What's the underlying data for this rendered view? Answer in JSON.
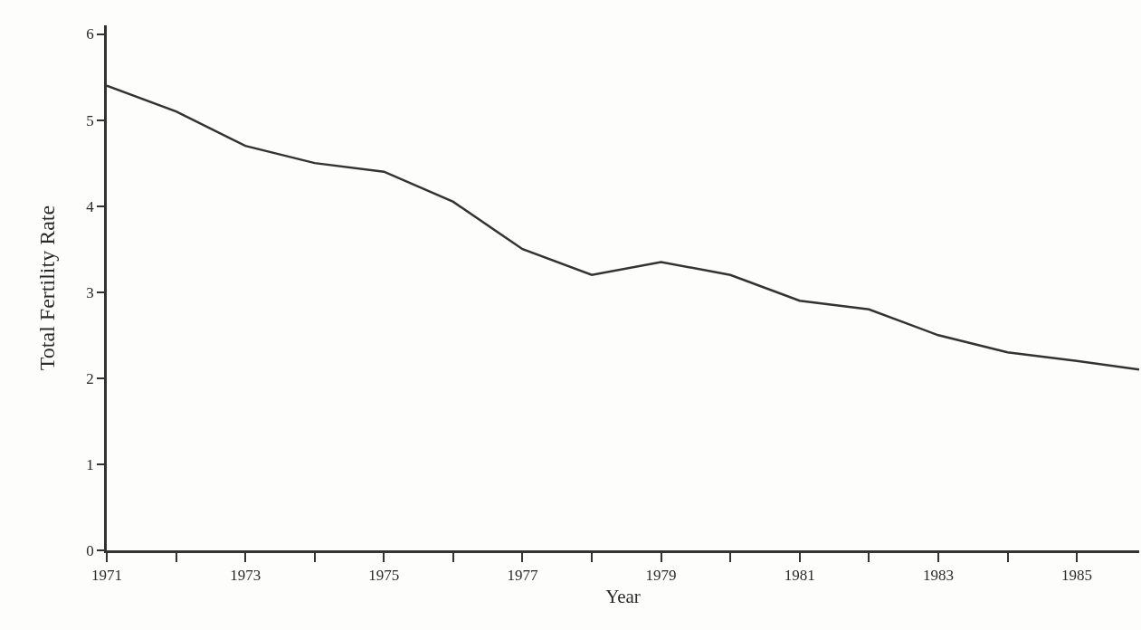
{
  "chart_data": {
    "type": "line",
    "xlabel": "Year",
    "ylabel": "Total Fertility Rate",
    "x": [
      1971,
      1972,
      1973,
      1974,
      1975,
      1976,
      1977,
      1978,
      1979,
      1980,
      1981,
      1982,
      1983,
      1984,
      1985,
      1985.9
    ],
    "series": [
      {
        "color": "#333333",
        "values": [
          5.4,
          5.1,
          4.7,
          4.5,
          4.4,
          4.05,
          3.5,
          3.2,
          3.35,
          3.2,
          2.9,
          2.8,
          2.5,
          2.3,
          2.2,
          2.1
        ]
      }
    ],
    "xlim": [
      1971,
      1985.9
    ],
    "xticks": [
      1971,
      {
        "value": 1972,
        "label": null
      },
      1973,
      {
        "value": 1974,
        "label": null
      },
      1975,
      {
        "value": 1976,
        "label": null
      },
      1977,
      {
        "value": 1978,
        "label": null
      },
      1979,
      {
        "value": 1980,
        "label": null
      },
      1981,
      {
        "value": 1982,
        "label": null
      },
      1983,
      {
        "value": 1984,
        "label": null
      },
      1985
    ],
    "ylim": [
      0,
      6.1
    ],
    "yticks": [
      0,
      1,
      2,
      3,
      4,
      5,
      6
    ],
    "marker": "none",
    "line_style": "solid"
  }
}
